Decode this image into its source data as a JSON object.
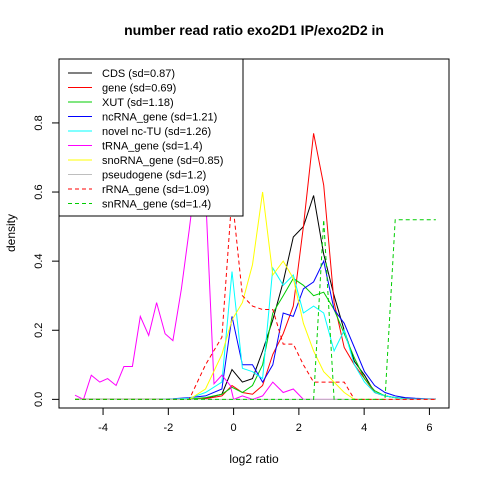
{
  "chart_data": {
    "type": "line",
    "title": "number read ratio exo2D1 IP/exo2D2 in",
    "xlabel": "log2 ratio",
    "ylabel": "density",
    "xlim": [
      -5.35,
      6.6
    ],
    "ylim": [
      -0.025,
      0.985
    ],
    "xticks": [
      -4,
      -2,
      0,
      2,
      4,
      6
    ],
    "yticks": [
      0.0,
      0.2,
      0.4,
      0.6,
      0.8
    ],
    "grid": false,
    "legend_position": "top-left",
    "series": [
      {
        "name": "CDS (sd=0.87)",
        "color": "#000000",
        "dash": false,
        "x": [
          -4.86,
          -4.36,
          -3.86,
          -3.36,
          -2.86,
          -2.36,
          -1.86,
          -1.36,
          -0.86,
          -0.36,
          -0.05,
          0.27,
          0.58,
          0.89,
          1.2,
          1.52,
          1.83,
          2.14,
          2.45,
          2.76,
          3.08,
          3.39,
          3.7,
          4.01,
          4.32,
          4.64,
          4.95,
          5.26,
          5.57,
          5.89,
          6.2
        ],
        "y": [
          0.0,
          0.0,
          0.0,
          0.0,
          0.0,
          0.0,
          0.0,
          0.0,
          0.003,
          0.015,
          0.086,
          0.05,
          0.06,
          0.14,
          0.23,
          0.34,
          0.47,
          0.5,
          0.59,
          0.42,
          0.3,
          0.2,
          0.11,
          0.07,
          0.02,
          0.01,
          0.005,
          0.003,
          0.002,
          0.001,
          0.001
        ]
      },
      {
        "name": "gene (sd=0.69)",
        "color": "#ff0000",
        "dash": false,
        "x": [
          -4.86,
          -4.36,
          -3.86,
          -3.36,
          -2.86,
          -2.36,
          -1.86,
          -1.36,
          -0.86,
          -0.36,
          -0.05,
          0.27,
          0.58,
          0.89,
          1.2,
          1.52,
          1.83,
          2.14,
          2.45,
          2.76,
          3.08,
          3.39,
          3.7,
          4.01,
          4.32,
          4.64,
          4.95,
          5.26,
          5.57,
          5.89,
          6.2
        ],
        "y": [
          0.0,
          0.0,
          0.0,
          0.0,
          0.0,
          0.0,
          0.0,
          0.0,
          0.002,
          0.01,
          0.04,
          0.02,
          0.015,
          0.04,
          0.13,
          0.19,
          0.27,
          0.5,
          0.77,
          0.62,
          0.28,
          0.15,
          0.1,
          0.06,
          0.02,
          0.01,
          0.005,
          0.002,
          0.001,
          0.001,
          0.0
        ]
      },
      {
        "name": "XUT (sd=1.18)",
        "color": "#00cd00",
        "dash": false,
        "x": [
          -4.86,
          -4.36,
          -3.86,
          -3.36,
          -2.86,
          -2.36,
          -1.86,
          -1.36,
          -0.86,
          -0.36,
          -0.05,
          0.27,
          0.58,
          0.89,
          1.2,
          1.52,
          1.83,
          2.14,
          2.45,
          2.76,
          3.08,
          3.39,
          3.7,
          4.01,
          4.32,
          4.64,
          4.95,
          5.26,
          5.57,
          5.89,
          6.2
        ],
        "y": [
          0.0,
          0.0,
          0.0,
          0.0,
          0.0,
          0.0,
          0.001,
          0.001,
          0.005,
          0.015,
          0.035,
          0.02,
          0.04,
          0.1,
          0.25,
          0.3,
          0.35,
          0.33,
          0.3,
          0.31,
          0.26,
          0.19,
          0.12,
          0.06,
          0.025,
          0.01,
          0.005,
          0.002,
          0.001,
          0.001,
          0.0
        ]
      },
      {
        "name": "ncRNA_gene (sd=1.21)",
        "color": "#0000ff",
        "dash": false,
        "x": [
          -4.86,
          -4.36,
          -3.86,
          -3.36,
          -2.86,
          -2.36,
          -1.86,
          -1.36,
          -0.86,
          -0.36,
          -0.05,
          0.27,
          0.58,
          0.89,
          1.2,
          1.52,
          1.83,
          2.14,
          2.45,
          2.76,
          3.08,
          3.39,
          3.7,
          4.01,
          4.32,
          4.64,
          4.95,
          5.26,
          5.57,
          5.89,
          6.2
        ],
        "y": [
          0.0,
          0.0,
          0.0,
          0.0,
          0.0,
          0.0,
          0.002,
          0.005,
          0.01,
          0.03,
          0.24,
          0.1,
          0.1,
          0.05,
          0.1,
          0.25,
          0.24,
          0.32,
          0.34,
          0.4,
          0.26,
          0.22,
          0.15,
          0.08,
          0.04,
          0.02,
          0.01,
          0.005,
          0.003,
          0.002,
          0.001
        ]
      },
      {
        "name": "novel nc-TU (sd=1.26)",
        "color": "#00ffff",
        "dash": false,
        "x": [
          -4.86,
          -4.36,
          -3.86,
          -3.36,
          -2.86,
          -2.36,
          -1.86,
          -1.36,
          -0.86,
          -0.36,
          -0.05,
          0.27,
          0.58,
          0.89,
          1.2,
          1.52,
          1.83,
          2.14,
          2.45,
          2.76,
          3.08,
          3.39,
          3.7,
          4.01,
          4.32,
          4.64,
          4.95,
          5.26,
          5.57,
          5.89,
          6.2
        ],
        "y": [
          0.0,
          0.0,
          0.0,
          0.0,
          0.0,
          0.0,
          0.001,
          0.003,
          0.02,
          0.05,
          0.37,
          0.09,
          0.08,
          0.06,
          0.38,
          0.33,
          0.36,
          0.25,
          0.27,
          0.25,
          0.14,
          0.2,
          0.1,
          0.05,
          0.02,
          0.01,
          0.005,
          0.002,
          0.001,
          0.001,
          0.0
        ]
      },
      {
        "name": "tRNA_gene (sd=1.4)",
        "color": "#ff00ff",
        "dash": false,
        "x": [
          -4.86,
          -4.6,
          -4.36,
          -4.1,
          -3.86,
          -3.6,
          -3.36,
          -3.1,
          -2.86,
          -2.6,
          -2.36,
          -2.1,
          -1.86,
          -1.6,
          -1.36,
          -1.1,
          -0.86,
          -0.6,
          -0.36,
          -0.1,
          0.0,
          0.27,
          0.58,
          0.89,
          1.2,
          1.52,
          1.83,
          2.14,
          2.45,
          2.76,
          3.08,
          3.39
        ],
        "y": [
          0.012,
          0.0,
          0.07,
          0.05,
          0.06,
          0.04,
          0.095,
          0.095,
          0.24,
          0.185,
          0.28,
          0.19,
          0.17,
          0.32,
          0.49,
          0.69,
          0.6,
          0.045,
          0.07,
          0.04,
          0.0,
          0.01,
          0.0,
          0.01,
          0.05,
          0.02,
          0.03,
          0.0,
          0.0,
          0.0,
          0.0,
          0.0
        ]
      },
      {
        "name": "snoRNA_gene (sd=0.85)",
        "color": "#ffff00",
        "dash": false,
        "x": [
          -4.86,
          -4.36,
          -3.86,
          -3.36,
          -2.86,
          -2.36,
          -1.86,
          -1.36,
          -0.86,
          -0.36,
          -0.05,
          0.27,
          0.58,
          0.89,
          1.2,
          1.52,
          1.83,
          2.14,
          2.45,
          2.76,
          3.08,
          3.39,
          3.7,
          4.01,
          4.32,
          4.64,
          4.95,
          5.26,
          5.57,
          5.89,
          6.2
        ],
        "y": [
          0.0,
          0.0,
          0.0,
          0.0,
          0.0,
          0.0,
          0.0,
          0.0,
          0.03,
          0.13,
          0.23,
          0.28,
          0.39,
          0.6,
          0.36,
          0.4,
          0.35,
          0.22,
          0.14,
          0.08,
          0.05,
          0.02,
          0.0,
          0.0,
          0.0,
          0.0,
          0.0,
          0.0,
          0.0,
          0.0,
          0.0
        ]
      },
      {
        "name": "pseudogene (sd=1.2)",
        "color": "#bebebe",
        "dash": false,
        "x": [
          -4.86,
          -4.36,
          -3.86,
          -3.36,
          -2.86,
          -2.36,
          -1.86,
          -1.36,
          -0.86,
          -0.36,
          -0.05,
          0.27,
          0.58,
          0.89,
          1.2,
          1.52,
          1.83,
          2.14,
          2.45,
          2.76,
          3.08,
          3.39,
          3.7,
          4.01,
          4.32,
          4.64,
          4.95,
          5.26,
          5.57,
          5.89,
          6.2
        ],
        "y": [
          0.0,
          0.0,
          0.0,
          0.0,
          0.0,
          0.0,
          0.0,
          0.0,
          0.0,
          0.0,
          0.0,
          0.0,
          0.0,
          0.0,
          0.0,
          0.0,
          0.0,
          0.0,
          0.0,
          0.0,
          0.0,
          0.0,
          0.0,
          0.0,
          0.0,
          0.0,
          0.0,
          0.0,
          0.0,
          0.0,
          0.0
        ]
      },
      {
        "name": "rRNA_gene (sd=1.09)",
        "color": "#ff0000",
        "dash": true,
        "x": [
          -4.86,
          -4.36,
          -3.86,
          -3.36,
          -2.86,
          -2.36,
          -1.86,
          -1.36,
          -0.86,
          -0.36,
          -0.05,
          0.27,
          0.58,
          0.89,
          1.2,
          1.52,
          1.83,
          2.14,
          2.45,
          2.76,
          3.08,
          3.39,
          3.7,
          4.01,
          4.32,
          4.64,
          4.95,
          5.26,
          5.57,
          5.89,
          6.2
        ],
        "y": [
          0.0,
          0.0,
          0.0,
          0.0,
          0.0,
          0.0,
          0.0,
          0.0,
          0.1,
          0.18,
          0.59,
          0.3,
          0.27,
          0.26,
          0.26,
          0.16,
          0.16,
          0.1,
          0.05,
          0.05,
          0.05,
          0.05,
          0.0,
          0.0,
          0.0,
          0.0,
          0.0,
          0.0,
          0.0,
          0.0,
          0.0
        ]
      },
      {
        "name": "snRNA_gene (sd=1.4)",
        "color": "#00cd00",
        "dash": true,
        "x": [
          -4.86,
          -4.36,
          -3.86,
          -3.36,
          -2.86,
          -2.36,
          -1.86,
          -1.36,
          -0.86,
          -0.36,
          -0.05,
          0.27,
          0.58,
          0.89,
          1.2,
          1.52,
          1.83,
          2.14,
          2.45,
          2.76,
          3.08,
          3.39,
          3.7,
          4.01,
          4.32,
          4.64,
          4.95,
          5.26,
          5.57,
          5.89,
          6.2
        ],
        "y": [
          0.0,
          0.0,
          0.0,
          0.0,
          0.0,
          0.0,
          0.0,
          0.0,
          0.0,
          0.0,
          0.0,
          0.0,
          0.0,
          0.0,
          0.0,
          0.0,
          0.0,
          0.0,
          0.0,
          0.52,
          0.0,
          0.0,
          0.0,
          0.0,
          0.0,
          0.0,
          0.52,
          0.52,
          0.52,
          0.52,
          0.52
        ]
      }
    ]
  }
}
